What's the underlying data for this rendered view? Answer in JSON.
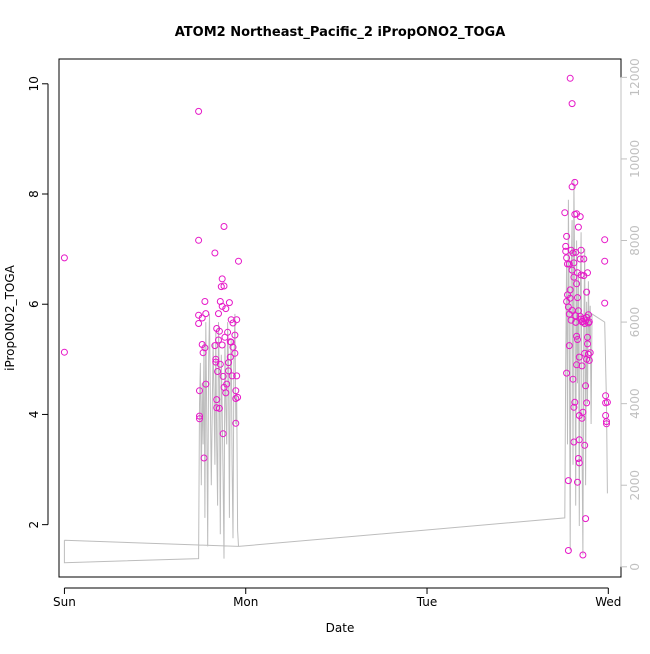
{
  "chart_data": {
    "type": "scatter",
    "title": "ATOM2 Northeast_Pacific_2 iPropONO2_TOGA",
    "xlabel": "Date",
    "ylabel": "iPropONO2_TOGA",
    "x_ticks": [
      "Sun",
      "Mon",
      "Tue",
      "Wed"
    ],
    "xlim_days": [
      -0.03,
      3.07
    ],
    "y_ticks": [
      "2",
      "4",
      "6",
      "8",
      "10"
    ],
    "ylim": [
      1.05,
      10.45
    ],
    "y2_ticks": [
      "0",
      "2000",
      "4000",
      "6000",
      "8000",
      "10000",
      "12000"
    ],
    "y2lim": [
      -250,
      12450
    ],
    "grid": false,
    "legend": "none",
    "point_color": "#e619c8",
    "line_color": "#bdbdbd",
    "axis_color": "#000000",
    "y2_axis_color": "#c0c0c0",
    "series": [
      {
        "kind": "points",
        "points": [
          [
            0.0,
            6.84
          ],
          [
            0.0,
            5.13
          ],
          [
            0.74,
            9.5
          ],
          [
            0.74,
            7.16
          ],
          [
            0.74,
            5.8
          ],
          [
            0.74,
            5.65
          ],
          [
            0.745,
            4.43
          ],
          [
            0.745,
            3.97
          ],
          [
            0.745,
            3.92
          ],
          [
            0.76,
            5.75
          ],
          [
            0.76,
            5.27
          ],
          [
            0.765,
            5.12
          ],
          [
            0.77,
            3.21
          ],
          [
            0.775,
            6.05
          ],
          [
            0.775,
            5.21
          ],
          [
            0.78,
            4.55
          ],
          [
            0.78,
            5.83
          ],
          [
            0.83,
            6.93
          ],
          [
            0.83,
            5.25
          ],
          [
            0.835,
            5.0
          ],
          [
            0.835,
            4.95
          ],
          [
            0.84,
            5.56
          ],
          [
            0.84,
            4.27
          ],
          [
            0.84,
            4.12
          ],
          [
            0.845,
            4.78
          ],
          [
            0.85,
            5.35
          ],
          [
            0.85,
            5.83
          ],
          [
            0.855,
            4.11
          ],
          [
            0.855,
            5.51
          ],
          [
            0.86,
            6.05
          ],
          [
            0.86,
            4.91
          ],
          [
            0.865,
            6.32
          ],
          [
            0.87,
            5.96
          ],
          [
            0.87,
            6.46
          ],
          [
            0.87,
            5.26
          ],
          [
            0.875,
            4.69
          ],
          [
            0.875,
            3.65
          ],
          [
            0.88,
            7.41
          ],
          [
            0.88,
            4.49
          ],
          [
            0.88,
            6.33
          ],
          [
            0.885,
            5.4
          ],
          [
            0.89,
            4.39
          ],
          [
            0.89,
            5.92
          ],
          [
            0.895,
            4.55
          ],
          [
            0.9,
            5.49
          ],
          [
            0.905,
            4.94
          ],
          [
            0.905,
            4.79
          ],
          [
            0.91,
            6.03
          ],
          [
            0.915,
            5.04
          ],
          [
            0.915,
            5.32
          ],
          [
            0.92,
            5.72
          ],
          [
            0.92,
            5.31
          ],
          [
            0.925,
            4.7
          ],
          [
            0.93,
            5.22
          ],
          [
            0.93,
            5.66
          ],
          [
            0.94,
            5.44
          ],
          [
            0.94,
            5.11
          ],
          [
            0.945,
            4.29
          ],
          [
            0.945,
            3.84
          ],
          [
            0.945,
            4.43
          ],
          [
            0.95,
            4.7
          ],
          [
            0.95,
            5.72
          ],
          [
            0.955,
            4.31
          ],
          [
            0.96,
            6.78
          ],
          [
            2.76,
            7.66
          ],
          [
            2.765,
            7.05
          ],
          [
            2.765,
            6.96
          ],
          [
            2.77,
            6.84
          ],
          [
            2.77,
            6.05
          ],
          [
            2.77,
            4.75
          ],
          [
            2.77,
            7.23
          ],
          [
            2.775,
            6.73
          ],
          [
            2.775,
            6.17
          ],
          [
            2.78,
            1.53
          ],
          [
            2.78,
            2.8
          ],
          [
            2.78,
            5.95
          ],
          [
            2.785,
            6.73
          ],
          [
            2.785,
            5.82
          ],
          [
            2.785,
            5.25
          ],
          [
            2.79,
            10.1
          ],
          [
            2.79,
            6.26
          ],
          [
            2.79,
            6.11
          ],
          [
            2.795,
            6.98
          ],
          [
            2.795,
            5.71
          ],
          [
            2.8,
            9.64
          ],
          [
            2.8,
            8.13
          ],
          [
            2.8,
            6.62
          ],
          [
            2.8,
            5.89
          ],
          [
            2.805,
            4.64
          ],
          [
            2.805,
            6.93
          ],
          [
            2.81,
            4.13
          ],
          [
            2.81,
            3.5
          ],
          [
            2.81,
            6.75
          ],
          [
            2.81,
            6.49
          ],
          [
            2.815,
            8.21
          ],
          [
            2.815,
            7.63
          ],
          [
            2.815,
            4.22
          ],
          [
            2.82,
            6.94
          ],
          [
            2.82,
            5.79
          ],
          [
            2.82,
            5.67
          ],
          [
            2.825,
            7.64
          ],
          [
            2.825,
            6.37
          ],
          [
            2.825,
            5.42
          ],
          [
            2.825,
            4.9
          ],
          [
            2.83,
            6.57
          ],
          [
            2.83,
            6.12
          ],
          [
            2.83,
            2.77
          ],
          [
            2.83,
            5.36
          ],
          [
            2.835,
            7.4
          ],
          [
            2.835,
            5.88
          ],
          [
            2.835,
            3.2
          ],
          [
            2.84,
            3.12
          ],
          [
            2.84,
            3.54
          ],
          [
            2.84,
            3.98
          ],
          [
            2.84,
            5.04
          ],
          [
            2.845,
            7.59
          ],
          [
            2.845,
            6.82
          ],
          [
            2.845,
            5.78
          ],
          [
            2.85,
            5.73
          ],
          [
            2.85,
            6.98
          ],
          [
            2.85,
            6.53
          ],
          [
            2.855,
            4.88
          ],
          [
            2.855,
            5.68
          ],
          [
            2.855,
            3.93
          ],
          [
            2.86,
            1.45
          ],
          [
            2.86,
            4.04
          ],
          [
            2.86,
            5.69
          ],
          [
            2.865,
            5.74
          ],
          [
            2.865,
            6.82
          ],
          [
            2.865,
            6.52
          ],
          [
            2.87,
            5.65
          ],
          [
            2.87,
            5.11
          ],
          [
            2.87,
            3.44
          ],
          [
            2.875,
            2.11
          ],
          [
            2.875,
            4.52
          ],
          [
            2.875,
            5.7
          ],
          [
            2.88,
            6.22
          ],
          [
            2.88,
            5.76
          ],
          [
            2.88,
            5.0
          ],
          [
            2.88,
            4.21
          ],
          [
            2.885,
            6.57
          ],
          [
            2.885,
            5.4
          ],
          [
            2.885,
            5.28
          ],
          [
            2.89,
            5.81
          ],
          [
            2.89,
            5.66
          ],
          [
            2.89,
            5.09
          ],
          [
            2.895,
            4.98
          ],
          [
            2.895,
            5.68
          ],
          [
            2.9,
            5.12
          ],
          [
            2.98,
            7.17
          ],
          [
            2.98,
            6.78
          ],
          [
            2.98,
            6.02
          ],
          [
            2.985,
            4.34
          ],
          [
            2.985,
            4.21
          ],
          [
            2.985,
            3.98
          ],
          [
            2.99,
            3.87
          ],
          [
            2.99,
            3.83
          ],
          [
            2.995,
            4.22
          ]
        ]
      },
      {
        "kind": "line",
        "points": [
          [
            0.0,
            400
          ],
          [
            0.0,
            650
          ],
          [
            0.0,
            100
          ],
          [
            0.74,
            200
          ],
          [
            0.745,
            4000
          ],
          [
            0.75,
            5000
          ],
          [
            0.755,
            2000
          ],
          [
            0.76,
            4500
          ],
          [
            0.765,
            3000
          ],
          [
            0.77,
            5500
          ],
          [
            0.775,
            1200
          ],
          [
            0.78,
            6000
          ],
          [
            0.785,
            3500
          ],
          [
            0.79,
            500
          ],
          [
            0.795,
            5000
          ],
          [
            0.8,
            6200
          ],
          [
            0.805,
            4000
          ],
          [
            0.81,
            2000
          ],
          [
            0.82,
            5500
          ],
          [
            0.825,
            4200
          ],
          [
            0.83,
            2500
          ],
          [
            0.835,
            5800
          ],
          [
            0.84,
            3000
          ],
          [
            0.845,
            1500
          ],
          [
            0.85,
            6000
          ],
          [
            0.855,
            4500
          ],
          [
            0.86,
            800
          ],
          [
            0.865,
            5200
          ],
          [
            0.87,
            3800
          ],
          [
            0.875,
            2200
          ],
          [
            0.88,
            200
          ],
          [
            0.885,
            5500
          ],
          [
            0.89,
            4000
          ],
          [
            0.895,
            3000
          ],
          [
            0.9,
            6000
          ],
          [
            0.905,
            5000
          ],
          [
            0.91,
            1200
          ],
          [
            0.915,
            4800
          ],
          [
            0.92,
            5600
          ],
          [
            0.925,
            2500
          ],
          [
            0.93,
            700
          ],
          [
            0.935,
            5000
          ],
          [
            0.94,
            6200
          ],
          [
            0.945,
            3500
          ],
          [
            0.95,
            4200
          ],
          [
            0.955,
            900
          ],
          [
            0.96,
            500
          ],
          [
            0.0,
            650
          ],
          [
            0.96,
            500
          ],
          [
            2.76,
            1200
          ],
          [
            2.765,
            5000
          ],
          [
            2.77,
            7500
          ],
          [
            2.775,
            3000
          ],
          [
            2.78,
            9000
          ],
          [
            2.785,
            6000
          ],
          [
            2.79,
            400
          ],
          [
            2.795,
            7000
          ],
          [
            2.8,
            8500
          ],
          [
            2.805,
            2500
          ],
          [
            2.81,
            9500
          ],
          [
            2.815,
            6800
          ],
          [
            2.82,
            1500
          ],
          [
            2.825,
            8000
          ],
          [
            2.83,
            4500
          ],
          [
            2.835,
            7200
          ],
          [
            2.84,
            1000
          ],
          [
            2.845,
            6500
          ],
          [
            2.85,
            8200
          ],
          [
            2.855,
            3000
          ],
          [
            2.86,
            300
          ],
          [
            2.865,
            5800
          ],
          [
            2.87,
            7800
          ],
          [
            2.875,
            2000
          ],
          [
            2.88,
            6500
          ],
          [
            2.885,
            4000
          ],
          [
            2.89,
            7000
          ],
          [
            2.895,
            5500
          ],
          [
            2.9,
            6400
          ],
          [
            2.905,
            3500
          ],
          [
            2.91,
            6200
          ],
          [
            2.98,
            6000
          ],
          [
            2.99,
            4000
          ],
          [
            2.995,
            1800
          ]
        ]
      }
    ]
  }
}
